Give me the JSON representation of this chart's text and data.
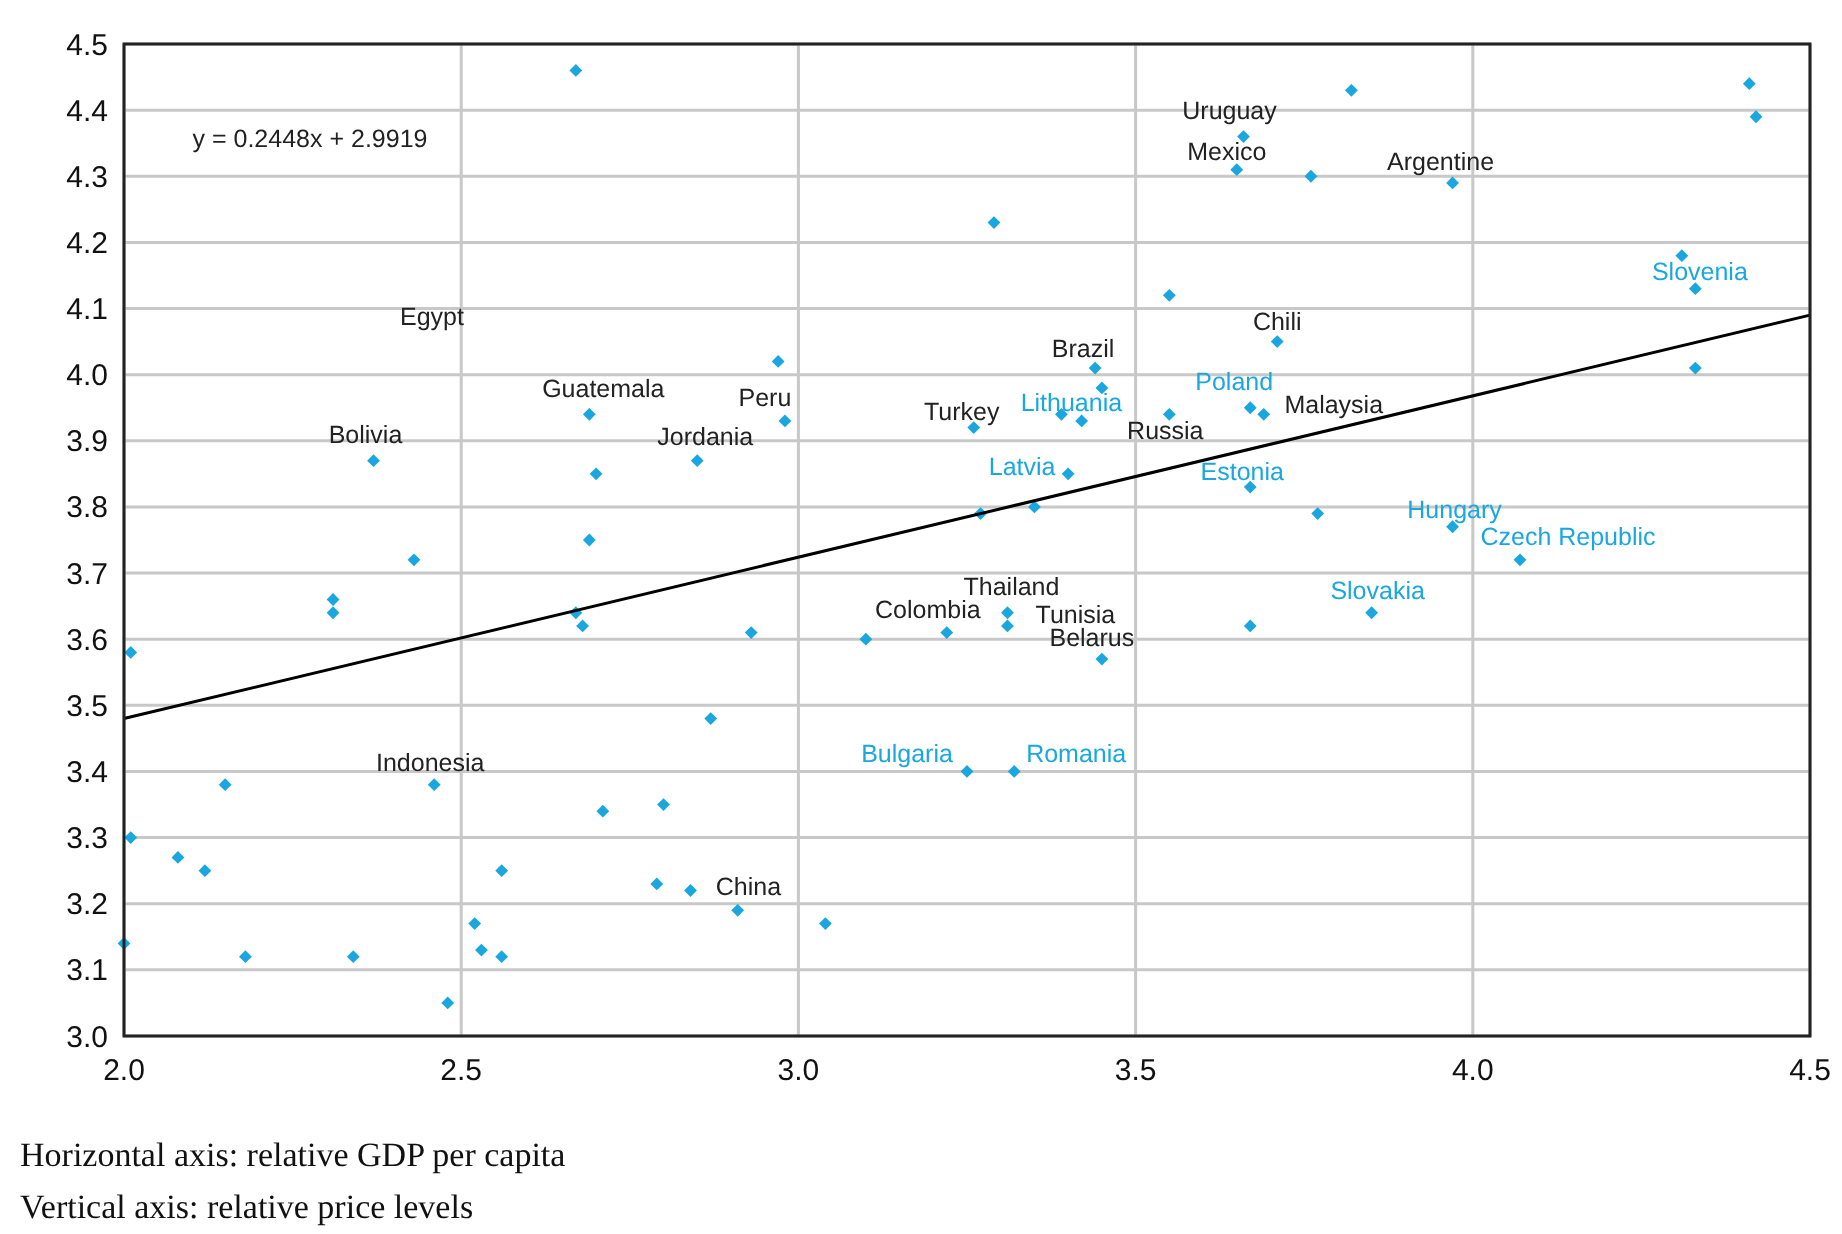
{
  "chart_data": {
    "type": "scatter",
    "marker": "diamond",
    "grid": true,
    "xlim": [
      2,
      4.5
    ],
    "ylim": [
      3,
      4.5
    ],
    "xticks": [
      {
        "value": 2,
        "label": "2.0"
      },
      {
        "value": 2.5,
        "label": "2.5"
      },
      {
        "value": 3,
        "label": "3.0"
      },
      {
        "value": 3.5,
        "label": "3.5"
      },
      {
        "value": 4,
        "label": "4.0"
      },
      {
        "value": 4.5,
        "label": "4.5"
      }
    ],
    "yticks": [
      {
        "value": 3,
        "label": "3.0"
      },
      {
        "value": 3.1,
        "label": "3.1"
      },
      {
        "value": 3.2,
        "label": "3.2"
      },
      {
        "value": 3.3,
        "label": "3.3"
      },
      {
        "value": 3.4,
        "label": "3.4"
      },
      {
        "value": 3.5,
        "label": "3.5"
      },
      {
        "value": 3.6,
        "label": "3.6"
      },
      {
        "value": 3.7,
        "label": "3.7"
      },
      {
        "value": 3.8,
        "label": "3.8"
      },
      {
        "value": 3.9,
        "label": "3.9"
      },
      {
        "value": 4,
        "label": "4.0"
      },
      {
        "value": 4.1,
        "label": "4.1"
      },
      {
        "value": 4.2,
        "label": "4.2"
      },
      {
        "value": 4.3,
        "label": "4.3"
      },
      {
        "value": 4.4,
        "label": "4.4"
      },
      {
        "value": 4.5,
        "label": "4.5"
      }
    ],
    "series": [
      {
        "color": "#1aa7e0",
        "x": [
          2.67,
          3.82,
          3.66,
          3.65,
          3.76,
          3.97,
          4.41,
          4.42,
          3.29,
          3.55,
          4.31,
          4.33,
          3.71,
          4.33,
          2.97,
          3.44,
          3.45,
          2.98,
          2.69,
          3.67,
          3.69,
          3.55,
          3.39,
          3.42,
          3.26,
          2.85,
          2.37,
          2.7,
          3.4,
          3.67,
          3.77,
          3.27,
          3.35,
          3.97,
          4.07,
          2.69,
          2.43,
          2.31,
          2.31,
          2.01,
          2.67,
          2.68,
          2.93,
          3.1,
          3.22,
          3.31,
          3.31,
          3.45,
          3.67,
          3.85,
          3.25,
          3.32,
          2.87,
          2.46,
          2.15,
          2.71,
          2.8,
          2.01,
          2.08,
          2.12,
          2.56,
          2.79,
          2.84,
          2.91,
          3.04,
          2.52,
          2.53,
          2.56,
          2.0,
          2.18,
          2.34,
          2.48
        ],
        "values": [
          4.46,
          4.43,
          4.36,
          4.31,
          4.3,
          4.29,
          4.44,
          4.39,
          4.23,
          4.12,
          4.18,
          4.13,
          4.05,
          4.01,
          4.02,
          4.01,
          3.98,
          3.93,
          3.94,
          3.95,
          3.94,
          3.94,
          3.94,
          3.93,
          3.92,
          3.87,
          3.87,
          3.85,
          3.85,
          3.83,
          3.79,
          3.79,
          3.8,
          3.77,
          3.72,
          3.75,
          3.72,
          3.66,
          3.64,
          3.58,
          3.64,
          3.62,
          3.61,
          3.6,
          3.61,
          3.64,
          3.62,
          3.57,
          3.62,
          3.64,
          3.4,
          3.4,
          3.48,
          3.38,
          3.38,
          3.34,
          3.35,
          3.3,
          3.27,
          3.25,
          3.25,
          3.23,
          3.22,
          3.19,
          3.17,
          3.17,
          3.13,
          3.12,
          3.14,
          3.12,
          3.12,
          3.05
        ]
      },
      {
        "type": "line",
        "color": "#000000",
        "marker": "none",
        "x": [
          2,
          4.5
        ],
        "values": [
          3.48,
          4.09
        ]
      }
    ],
    "annotations": [
      "y = 0.2448x + 2.9919",
      {
        "text": "Uruguay",
        "x": 3.66,
        "y": 4.36
      },
      {
        "text": "Mexico",
        "x": 3.65,
        "y": 4.31
      },
      {
        "text": "Argentine",
        "x": 3.97,
        "y": 4.29
      },
      {
        "text": "Slovenia",
        "x": 4.31,
        "y": 4.18
      },
      {
        "text": "Chili",
        "x": 3.71,
        "y": 4.05
      },
      {
        "text": "Brazil",
        "x": 3.44,
        "y": 4.01
      },
      {
        "text": "Poland",
        "x": 3.67,
        "y": 3.95
      },
      {
        "text": "Malaysia",
        "x": 3.69,
        "y": 3.94
      },
      {
        "text": "Lithuania",
        "x": 3.39,
        "y": 3.94
      },
      {
        "text": "Russia",
        "x": 3.55,
        "y": 3.94
      },
      {
        "text": "Turkey",
        "x": 3.26,
        "y": 3.92
      },
      {
        "text": "Peru",
        "x": 2.98,
        "y": 3.93
      },
      {
        "text": "Guatemala",
        "x": 2.69,
        "y": 3.94
      },
      {
        "text": "Jordania",
        "x": 2.85,
        "y": 3.87
      },
      {
        "text": "Bolivia",
        "x": 2.37,
        "y": 3.87
      },
      {
        "text": "Latvia",
        "x": 3.4,
        "y": 3.85
      },
      {
        "text": "Estonia",
        "x": 3.67,
        "y": 3.83
      },
      {
        "text": "Hungary",
        "x": 3.97,
        "y": 3.77
      },
      {
        "text": "Czech Republic",
        "x": 4.07,
        "y": 3.72
      },
      {
        "text": "Slovakia",
        "x": 3.85,
        "y": 3.64
      },
      {
        "text": "Thailand",
        "x": 3.31,
        "y": 3.64
      },
      {
        "text": "Colombia",
        "x": 3.1,
        "y": 3.6
      },
      {
        "text": "Tunisia",
        "x": 3.31,
        "y": 3.62
      },
      {
        "text": "Belarus",
        "x": 3.45,
        "y": 3.57
      },
      {
        "text": "Bulgaria",
        "x": 3.25,
        "y": 3.4
      },
      {
        "text": "Romania",
        "x": 3.32,
        "y": 3.4
      },
      {
        "text": "Indonesia",
        "x": 2.46,
        "y": 3.38
      },
      {
        "text": "China",
        "x": 2.84,
        "y": 3.22
      },
      "Egypt",
      "Horizontal axis: relative GDP per capita",
      "Vertical axis: relative price levels"
    ]
  }
}
